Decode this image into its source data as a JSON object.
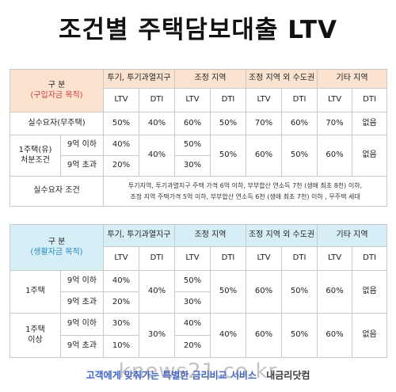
{
  "title": "조건별 주택담보대출 LTV",
  "table1": {
    "corner": "구 분",
    "corner_sub": "(구입자금 목적)",
    "regions": [
      "투기, 투기과열지구",
      "조정 지역",
      "조정 지역 외 수도권",
      "기타 지역"
    ],
    "ltv": "LTV",
    "dti": "DTI",
    "row_actual": {
      "label": "실수요자(무주택)",
      "vals": [
        "50%",
        "40%",
        "60%",
        "50%",
        "70%",
        "60%",
        "70%",
        "없음"
      ]
    },
    "row_one": {
      "label_line1": "1주택(유)",
      "label_line2": "처분조건",
      "sub_a": "9억 이하",
      "sub_b": "9억 초과",
      "r1_ltv_a": "40%",
      "r1_ltv_b": "20%",
      "r1_dti": "40%",
      "r2_ltv_a": "50%",
      "r2_ltv_b": "30%",
      "r2_dti": "50%",
      "r3_ltv": "60%",
      "r3_dti": "50%",
      "r4_ltv": "60%",
      "r4_dti": "없음"
    },
    "cond_label": "실수요자 조건",
    "cond_line1": "투기지역, 투기과열지구 주택 가격 6억 이하, 부부합산 연소득 7천 (생애 최초 8천) 이하,",
    "cond_line2": "조정 지역 주택가격 5억 이하, 부부합산 연소득 6천 (생애 최초 7천) 이하 , 무주택 세대"
  },
  "table2": {
    "corner": "구 분",
    "corner_sub": "(생활자금 목적)",
    "regions": [
      "투기, 투기과열지구",
      "조정 지역",
      "조정 지역 외 수도권",
      "기타 지역"
    ],
    "ltv": "LTV",
    "dti": "DTI",
    "g1": {
      "label": "1주택",
      "sub_a": "9억 이하",
      "sub_b": "9억 초과",
      "r1_ltv_a": "40%",
      "r1_ltv_b": "20%",
      "r1_dti": "40%",
      "r2_ltv_a": "50%",
      "r2_ltv_b": "30%",
      "r2_dti": "50%",
      "r3_ltv": "60%",
      "r3_dti": "50%",
      "r4_ltv": "60%",
      "r4_dti": "없음"
    },
    "g2": {
      "label_line1": "1주택",
      "label_line2": "이상",
      "sub_a": "9억 이하",
      "sub_b": "9억 초과",
      "r1_ltv_a": "30%",
      "r1_ltv_b": "10%",
      "r1_dti": "30%",
      "r2_ltv_a": "40%",
      "r2_ltv_b": "20%",
      "r2_dti": "40%",
      "r3_ltv": "60%",
      "r3_dti": "50%",
      "r4_ltv": "60%",
      "r4_dti": "없음"
    }
  },
  "footer": {
    "left": "고객에게 맞춰가는 특별한 금리비교 서비스",
    "right": "내금리닷컴"
  },
  "watermark": "knews21.co.kr"
}
